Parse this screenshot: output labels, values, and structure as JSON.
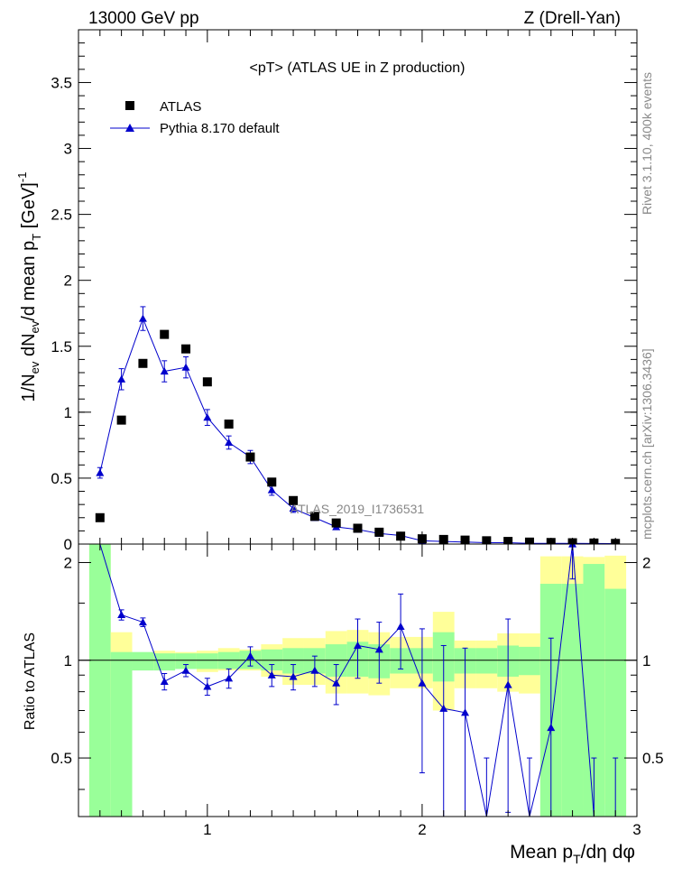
{
  "header": {
    "energy": "13000 GeV pp",
    "process": "Z (Drell-Yan)",
    "rivet_label": "Rivet 3.1.10,  400k events",
    "source_label": "mcplots.cern.ch [arXiv:1306.3436]"
  },
  "chart_data": {
    "type": "scatter",
    "title": "<pT>  (ATLAS UE in Z production)",
    "analysis_tag": "ATLAS_2019_I1736531",
    "xlabel": "Mean p_T/dη dφ",
    "ylabel": "1/N_ev dN_ev/d mean p_T [GeV]^-1",
    "ratio_ylabel": "Ratio to ATLAS",
    "xlim": [
      0.4,
      3.0
    ],
    "ylim": [
      0,
      3.9
    ],
    "ratio_ylim": [
      0.33,
      2.28
    ],
    "x_scale": "linear",
    "main_yticks": [
      0,
      0.5,
      1,
      1.5,
      2,
      2.5,
      3,
      3.5
    ],
    "main_ytick_labels": [
      "0",
      "0.5",
      "1",
      "1.5",
      "2",
      "2.5",
      "3",
      "3.5"
    ],
    "ratio_yticks": [
      0.5,
      1,
      2
    ],
    "ratio_ytick_labels": [
      "0.5",
      "1",
      "2"
    ],
    "xticks": [
      1,
      2,
      3
    ],
    "xtick_labels": [
      "1",
      "2",
      "3"
    ],
    "legend_position": "top-left",
    "legend": [
      {
        "label": "ATLAS",
        "marker": "square",
        "color": "#000000"
      },
      {
        "label": "Pythia 8.170 default",
        "marker": "triangle",
        "color": "#0000cc"
      }
    ],
    "x": [
      0.5,
      0.6,
      0.7,
      0.8,
      0.9,
      1.0,
      1.1,
      1.2,
      1.3,
      1.4,
      1.5,
      1.6,
      1.7,
      1.8,
      1.9,
      2.0,
      2.1,
      2.2,
      2.3,
      2.4,
      2.5,
      2.6,
      2.7,
      2.8,
      2.9
    ],
    "bin_width": 0.1,
    "series": [
      {
        "name": "ATLAS",
        "color": "#000000",
        "values": [
          0.2,
          0.94,
          1.37,
          1.59,
          1.48,
          1.23,
          0.91,
          0.66,
          0.47,
          0.33,
          0.21,
          0.16,
          0.12,
          0.09,
          0.06,
          0.04,
          0.035,
          0.03,
          0.025,
          0.02,
          0.015,
          0.012,
          0.01,
          0.008,
          0.005
        ],
        "band_inner_lo": [
          0.33,
          0.33,
          0.93,
          0.93,
          0.94,
          0.94,
          0.94,
          0.94,
          0.93,
          0.91,
          0.91,
          0.89,
          0.89,
          0.88,
          0.91,
          0.91,
          0.86,
          0.91,
          0.91,
          0.89,
          0.9,
          0.33,
          0.33,
          0.33,
          0.33
        ],
        "band_inner_hi": [
          2.28,
          1.06,
          1.06,
          1.05,
          1.05,
          1.05,
          1.06,
          1.07,
          1.08,
          1.09,
          1.09,
          1.12,
          1.14,
          1.12,
          1.09,
          1.09,
          1.22,
          1.09,
          1.09,
          1.11,
          1.1,
          1.72,
          1.72,
          1.98,
          1.66
        ],
        "band_outer_lo": [
          0.33,
          0.77,
          0.96,
          0.96,
          0.95,
          0.92,
          0.93,
          0.93,
          0.89,
          0.84,
          0.84,
          0.79,
          0.79,
          0.78,
          0.82,
          0.82,
          0.7,
          0.82,
          0.82,
          0.8,
          0.79,
          0.33,
          0.33,
          0.36,
          0.36
        ],
        "band_outer_hi": [
          2.28,
          1.22,
          1.04,
          1.07,
          1.06,
          1.07,
          1.09,
          1.08,
          1.12,
          1.17,
          1.17,
          1.23,
          1.24,
          1.22,
          1.18,
          1.18,
          1.41,
          1.15,
          1.15,
          1.21,
          1.21,
          2.09,
          2.09,
          2.08,
          2.1
        ]
      },
      {
        "name": "Pythia 8.170 default",
        "color": "#0000cc",
        "values": [
          0.54,
          1.25,
          1.71,
          1.31,
          1.34,
          0.96,
          0.77,
          0.66,
          0.41,
          0.27,
          0.2,
          0.13,
          0.11,
          0.08,
          0.065,
          0.025,
          0.02,
          0.015,
          0.01,
          0.01,
          0.005,
          0.005,
          0.005,
          0.004,
          0.003
        ],
        "errors": [
          0.04,
          0.08,
          0.09,
          0.08,
          0.08,
          0.06,
          0.05,
          0.05,
          0.04,
          0.03,
          0.02,
          0.015,
          0.01,
          0.01,
          0.008,
          0.006,
          0.005,
          0.005,
          0.004,
          0.004,
          0.003,
          0.003,
          0.003,
          0.003,
          0.002
        ],
        "ratio_values": [
          2.6,
          1.38,
          1.31,
          0.86,
          0.93,
          0.83,
          0.88,
          1.03,
          0.9,
          0.89,
          0.93,
          0.85,
          1.11,
          1.08,
          1.27,
          0.85,
          0.71,
          0.69,
          0.2,
          0.84,
          0.2,
          0.62,
          2.28,
          0.2,
          0.2
        ],
        "ratio_errors": [
          0.1,
          0.05,
          0.04,
          0.05,
          0.04,
          0.05,
          0.06,
          0.07,
          0.07,
          0.08,
          0.1,
          0.12,
          0.23,
          0.23,
          0.33,
          0.4,
          0.4,
          0.4,
          0.3,
          0.5,
          0.3,
          0.55,
          0.5,
          0.3,
          0.3
        ]
      }
    ]
  }
}
